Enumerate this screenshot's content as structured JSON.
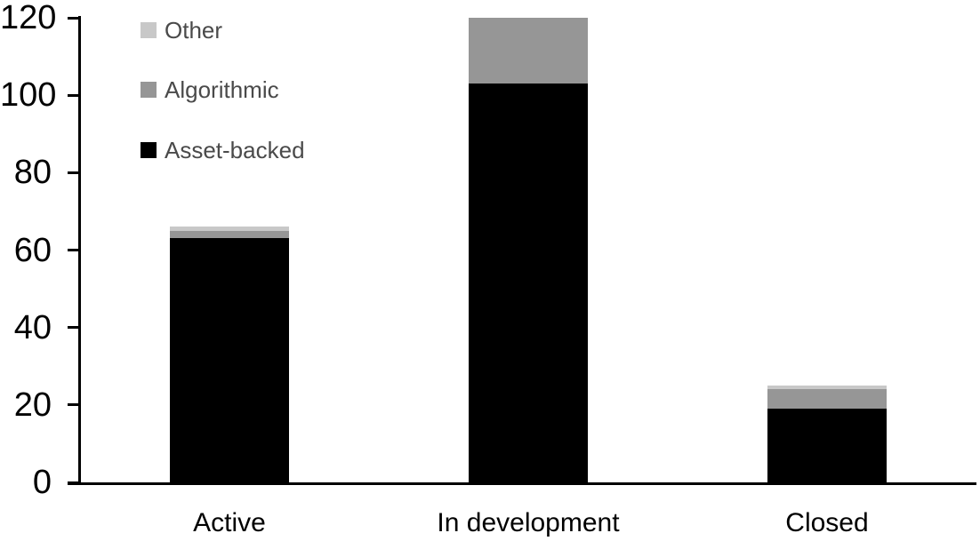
{
  "chart_data": {
    "type": "bar",
    "stacked": true,
    "title": "",
    "xlabel": "",
    "ylabel": "",
    "categories": [
      "Active",
      "In development",
      "Closed"
    ],
    "series": [
      {
        "name": "Asset-backed",
        "color": "#000000",
        "values": [
          63,
          103,
          19
        ]
      },
      {
        "name": "Algorithmic",
        "color": "#969696",
        "values": [
          2,
          17,
          5
        ]
      },
      {
        "name": "Other",
        "color": "#c8c8c8",
        "values": [
          1,
          0,
          1
        ]
      }
    ],
    "totals": [
      66,
      120,
      25
    ],
    "ylim": [
      0,
      120
    ],
    "ytick_step": 20,
    "ytick_labels": [
      "0",
      "20",
      "40",
      "60",
      "80",
      "100",
      "120"
    ],
    "grid": false,
    "legend": {
      "position": "top-left",
      "order": [
        "Other",
        "Algorithmic",
        "Asset-backed"
      ]
    },
    "colors": {
      "axis": "#000000",
      "legend_text": "#4a4a4a",
      "background": "#ffffff"
    }
  }
}
